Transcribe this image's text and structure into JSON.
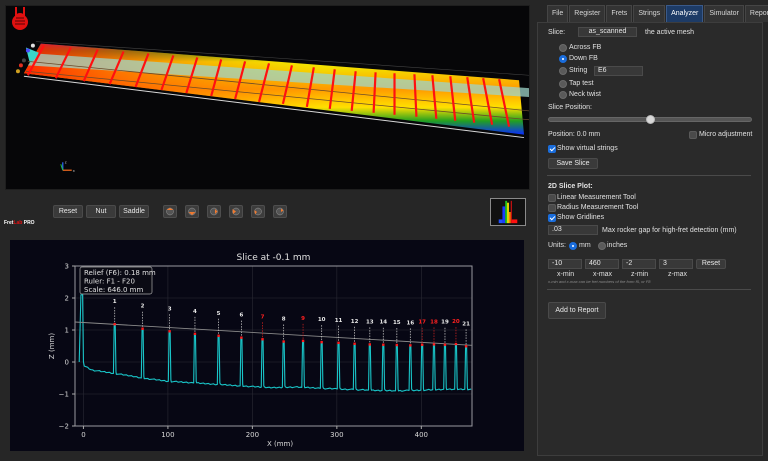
{
  "viewer3d": {
    "axes_labels": {
      "x": "x",
      "y": "y",
      "z": "z"
    }
  },
  "toolbar": {
    "logo": {
      "part1": "Fret",
      "part2": "Lab",
      "part3": " PRO"
    },
    "reset_label": "Reset",
    "nut_label": "Nut",
    "saddle_label": "Saddle",
    "view_buttons": [
      "view-top-icon",
      "view-front-icon",
      "view-side-icon",
      "view-iso-icon",
      "view-back-icon",
      "view-bottom-icon"
    ]
  },
  "tabs": [
    {
      "label": "File",
      "active": false
    },
    {
      "label": "Register",
      "active": false
    },
    {
      "label": "Frets",
      "active": false
    },
    {
      "label": "Strings",
      "active": false
    },
    {
      "label": "Analyzer",
      "active": true
    },
    {
      "label": "Simulator",
      "active": false
    },
    {
      "label": "Report",
      "active": false
    }
  ],
  "analyzer": {
    "slice_label": "Slice:",
    "slice_value": "as_scanned",
    "slice_note": "the active mesh",
    "options": [
      {
        "label": "Across FB",
        "selected": false
      },
      {
        "label": "Down FB",
        "selected": true
      },
      {
        "label": "String",
        "selected": false
      },
      {
        "label": "Tap test",
        "selected": false
      },
      {
        "label": "Neck twist",
        "selected": false
      }
    ],
    "string_value": "E6",
    "slice_position_label": "Slice Position:",
    "slider_percent": 50,
    "position_text": "Position: 0.0 mm",
    "micro_adjustment_label": "Micro adjustment",
    "micro_adjustment_checked": false,
    "show_virtual_strings_label": "Show virtual strings",
    "show_virtual_strings_checked": true,
    "save_slice_label": "Save Slice",
    "plot2d_header": "2D Slice Plot:",
    "linear_tool_label": "Linear Measurement Tool",
    "linear_tool_checked": false,
    "radius_tool_label": "Radius Measurement Tool",
    "radius_tool_checked": false,
    "show_gridlines_label": "Show Gridlines",
    "show_gridlines_checked": true,
    "rocker_gap_value": ".03",
    "rocker_gap_label": "Max rocker gap for high-fret detection (mm)",
    "units_label": "Units:",
    "unit_mm_label": "mm",
    "unit_inches_label": "inches",
    "unit_selected": "mm",
    "xmin_value": "-10",
    "xmax_value": "460",
    "zmin_value": "-2",
    "zmax_value": "3",
    "range_reset_label": "Reset",
    "xmin_label": "x-min",
    "xmax_label": "x-max",
    "zmin_label": "z-min",
    "zmax_label": "z-max",
    "range_hint": "x-min and x-max can be fret numbers of the form f5, or F8",
    "add_to_report_label": "Add to Report"
  },
  "chart_data": {
    "type": "line",
    "title": "Slice at -0.1 mm",
    "xlabel": "X (mm)",
    "ylabel": "Z (mm)",
    "xlim": [
      -10,
      460
    ],
    "ylim": [
      -2,
      3
    ],
    "xticks": [
      0,
      100,
      200,
      300,
      400
    ],
    "yticks": [
      -2,
      -1,
      0,
      1,
      2,
      3
    ],
    "grid": true,
    "annotation_box": [
      "Relief (F6): 0.18 mm",
      "Ruler: F1 - F20",
      "Scale: 646.0 mm"
    ],
    "ruler_line": {
      "x": [
        -10,
        460
      ],
      "z": [
        1.25,
        0.52
      ]
    },
    "series": [
      {
        "name": "surface",
        "color": "#19c5c8",
        "baseline_x": [
          -5,
          0,
          10,
          35,
          60,
          70,
          100,
          130,
          160,
          190,
          220,
          250,
          280,
          310,
          340,
          370,
          400,
          430,
          460
        ],
        "baseline_z": [
          0.0,
          -0.1,
          -0.25,
          -0.35,
          -0.45,
          -0.5,
          -0.6,
          -0.65,
          -0.7,
          -0.75,
          -0.8,
          -0.78,
          -0.82,
          -0.85,
          -0.88,
          -0.9,
          -0.88,
          -0.85,
          -0.85
        ]
      }
    ],
    "frets": [
      {
        "n": "1",
        "x": 37,
        "z": 1.18,
        "high": false
      },
      {
        "n": "2",
        "x": 70,
        "z": 1.04,
        "high": false
      },
      {
        "n": "3",
        "x": 102,
        "z": 0.96,
        "high": false
      },
      {
        "n": "4",
        "x": 132,
        "z": 0.88,
        "high": false
      },
      {
        "n": "5",
        "x": 160,
        "z": 0.82,
        "high": false
      },
      {
        "n": "6",
        "x": 187,
        "z": 0.76,
        "high": false
      },
      {
        "n": "7",
        "x": 212,
        "z": 0.71,
        "high": true
      },
      {
        "n": "8",
        "x": 237,
        "z": 0.64,
        "high": false
      },
      {
        "n": "9",
        "x": 260,
        "z": 0.66,
        "high": true
      },
      {
        "n": "10",
        "x": 282,
        "z": 0.62,
        "high": false
      },
      {
        "n": "11",
        "x": 302,
        "z": 0.6,
        "high": false
      },
      {
        "n": "12",
        "x": 321,
        "z": 0.57,
        "high": false
      },
      {
        "n": "13",
        "x": 339,
        "z": 0.55,
        "high": false
      },
      {
        "n": "14",
        "x": 355,
        "z": 0.54,
        "high": false
      },
      {
        "n": "15",
        "x": 371,
        "z": 0.53,
        "high": false
      },
      {
        "n": "16",
        "x": 387,
        "z": 0.52,
        "high": false
      },
      {
        "n": "17",
        "x": 401,
        "z": 0.54,
        "high": true
      },
      {
        "n": "18",
        "x": 415,
        "z": 0.55,
        "high": true
      },
      {
        "n": "19",
        "x": 428,
        "z": 0.54,
        "high": false
      },
      {
        "n": "20",
        "x": 441,
        "z": 0.56,
        "high": true
      },
      {
        "n": "21",
        "x": 453,
        "z": 0.49,
        "high": false
      }
    ]
  },
  "colors": {
    "accent": "#1a6ddc",
    "tab_active": "#1d3b66",
    "plot_bg": "#070714",
    "trace": "#19c5c8",
    "high_fret": "#ff1a1a",
    "app_bg": "#262626"
  }
}
